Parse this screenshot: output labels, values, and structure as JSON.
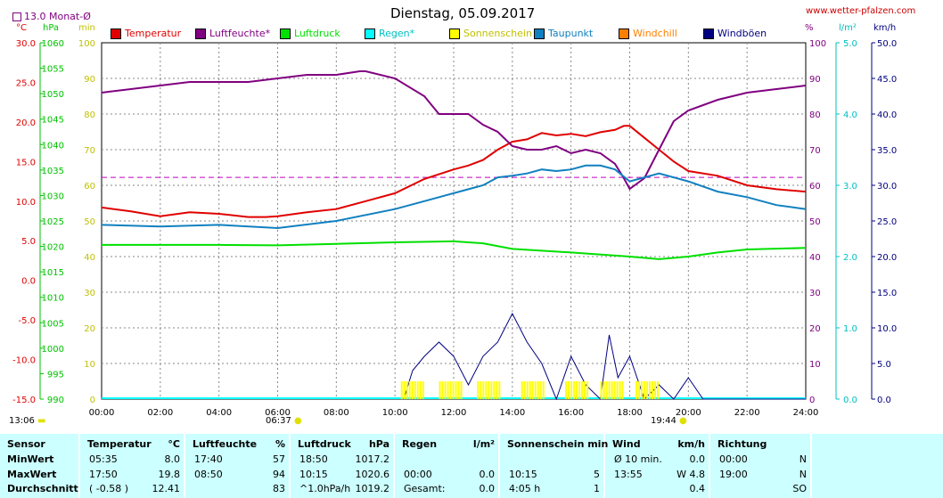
{
  "header": {
    "title": "Dienstag, 05.09.2017",
    "site": "www.wetter-pfalzen.com",
    "monat_label": "13.0 Monat-Ø",
    "unit_labels": {
      "temp": "°C",
      "hpa": "hPa",
      "min": "min",
      "pct": "%",
      "lm2": "l/m²",
      "kmh": "km/h"
    }
  },
  "legend": [
    {
      "label": "Temperatur",
      "color": "#e00000"
    },
    {
      "label": "Luftfeuchte*",
      "color": "#800080"
    },
    {
      "label": "Luftdruck",
      "color": "#00e000"
    },
    {
      "label": "Regen*",
      "color": "#00ffff"
    },
    {
      "label": "Sonnenschein",
      "color": "#ffff00"
    },
    {
      "label": "Taupunkt",
      "color": "#1080c0"
    },
    {
      "label": "Windchill",
      "color": "#ff8000"
    },
    {
      "label": "Windböen",
      "color": "#000080"
    }
  ],
  "markers": {
    "sunrise_day": "13:06",
    "sunrise": "06:37",
    "sunset": "19:44"
  },
  "chart_data": {
    "type": "line",
    "x_ticks": [
      "00:00",
      "02:00",
      "04:00",
      "06:00",
      "08:00",
      "10:00",
      "12:00",
      "14:00",
      "16:00",
      "18:00",
      "20:00",
      "22:00",
      "24:00"
    ],
    "axes": {
      "temp_c": {
        "ticks": [
          "30.0",
          "25.0",
          "20.0",
          "15.0",
          "10.0",
          "5.0",
          "0.0",
          "-5.0",
          "-10.0",
          "-15.0"
        ],
        "range": [
          -15,
          30
        ],
        "color": "#e00000"
      },
      "pressure_hpa": {
        "ticks": [
          "1060",
          "1055",
          "1050",
          "1045",
          "1040",
          "1035",
          "1030",
          "1025",
          "1020",
          "1015",
          "1010",
          "1005",
          "1000",
          "995",
          "990"
        ],
        "range": [
          990,
          1060
        ],
        "color": "#00c000"
      },
      "sun_min": {
        "ticks": [
          "100",
          "90",
          "80",
          "70",
          "60",
          "50",
          "40",
          "30",
          "20",
          "10",
          "0"
        ],
        "range": [
          0,
          100
        ],
        "color": "#c0c000"
      },
      "humidity_pct": {
        "ticks": [
          "100",
          "90",
          "80",
          "70",
          "60",
          "50",
          "40",
          "30",
          "20",
          "10",
          "0"
        ],
        "range": [
          0,
          100
        ],
        "color": "#800080"
      },
      "rain_lm2": {
        "ticks": [
          "5.0",
          "4.0",
          "3.0",
          "2.0",
          "1.0",
          "0.0"
        ],
        "range": [
          0,
          5
        ],
        "color": "#00c0c0"
      },
      "wind_kmh": {
        "ticks": [
          "50.0",
          "45.0",
          "40.0",
          "35.0",
          "30.0",
          "25.0",
          "20.0",
          "15.0",
          "10.0",
          "5.0",
          "0.0"
        ],
        "range": [
          0,
          50
        ],
        "color": "#000080"
      }
    },
    "monthly_avg_temp": 13.0,
    "series": [
      {
        "name": "Temperatur",
        "axis": "temp_c",
        "color": "#e00000",
        "x": [
          0,
          1,
          2,
          3,
          4,
          5,
          5.6,
          6,
          7,
          8,
          9,
          10,
          11,
          12,
          12.5,
          13,
          13.5,
          14,
          14.5,
          15,
          15.5,
          16,
          16.5,
          17,
          17.5,
          17.8,
          18,
          18.5,
          19,
          19.5,
          20,
          21,
          22,
          23,
          24
        ],
        "y": [
          9.2,
          8.7,
          8.1,
          8.6,
          8.4,
          8.0,
          8.0,
          8.1,
          8.6,
          9.0,
          10.0,
          11.0,
          12.8,
          14.0,
          14.5,
          15.2,
          16.5,
          17.5,
          17.8,
          18.6,
          18.3,
          18.5,
          18.2,
          18.7,
          19.0,
          19.5,
          19.5,
          18.0,
          16.5,
          15.0,
          13.8,
          13.2,
          12.0,
          11.5,
          11.2
        ]
      },
      {
        "name": "Luftfeuchte*",
        "axis": "humidity_pct",
        "color": "#800080",
        "x": [
          0,
          1,
          2,
          3,
          4,
          5,
          6,
          7,
          8,
          8.8,
          9,
          10,
          11,
          11.5,
          12,
          12.5,
          13,
          13.5,
          14,
          14.5,
          15,
          15.5,
          16,
          16.5,
          17,
          17.5,
          17.8,
          18,
          18.5,
          19,
          19.5,
          20,
          21,
          22,
          23,
          24
        ],
        "y": [
          86,
          87,
          88,
          89,
          89,
          89,
          90,
          91,
          91,
          92,
          92,
          90,
          85,
          80,
          80,
          80,
          77,
          75,
          71,
          70,
          70,
          71,
          69,
          70,
          69,
          66,
          62,
          59,
          62,
          70,
          78,
          81,
          84,
          86,
          87,
          88
        ]
      },
      {
        "name": "Luftdruck",
        "axis": "pressure_hpa",
        "color": "#00e000",
        "x": [
          0,
          2,
          4,
          6,
          8,
          10,
          12,
          13,
          14,
          16,
          18,
          19,
          20,
          21,
          22,
          24
        ],
        "y": [
          1020.3,
          1020.3,
          1020.3,
          1020.2,
          1020.5,
          1020.8,
          1021.0,
          1020.6,
          1019.5,
          1018.8,
          1018.0,
          1017.5,
          1018.0,
          1018.8,
          1019.4,
          1019.7
        ]
      },
      {
        "name": "Taupunkt",
        "axis": "temp_c",
        "color": "#1080c0",
        "x": [
          0,
          2,
          4,
          6,
          8,
          10,
          11,
          12,
          12.5,
          13,
          13.5,
          14,
          14.5,
          15,
          15.5,
          16,
          16.5,
          17,
          17.5,
          18,
          18.5,
          19,
          20,
          21,
          22,
          23,
          24
        ],
        "y": [
          7.0,
          6.8,
          7.0,
          6.6,
          7.5,
          9.0,
          10.0,
          11.0,
          11.5,
          12.0,
          13.0,
          13.2,
          13.5,
          14.0,
          13.8,
          14.0,
          14.5,
          14.5,
          14.0,
          12.5,
          13.0,
          13.5,
          12.5,
          11.2,
          10.5,
          9.5,
          9.0
        ]
      },
      {
        "name": "Windböen",
        "axis": "wind_kmh",
        "color": "#000080",
        "x": [
          10.3,
          10.6,
          11,
          11.5,
          12,
          12.5,
          13,
          13.5,
          14,
          14.5,
          15,
          15.5,
          16,
          16.5,
          17,
          17.3,
          17.6,
          18,
          18.5,
          19,
          19.5,
          20,
          20.5,
          24
        ],
        "y": [
          0,
          4,
          6,
          8,
          6,
          2,
          6,
          8,
          12,
          8,
          5,
          0,
          6,
          2,
          0,
          9,
          3,
          6,
          0,
          2,
          0,
          3,
          0,
          0
        ]
      },
      {
        "name": "Sonnenschein",
        "axis": "sun_min",
        "color": "#ffff00",
        "x": [
          10.2,
          11.5,
          12.8,
          14.3,
          15.8,
          17.0,
          18.2
        ],
        "y": [
          5,
          5,
          5,
          5,
          5,
          5,
          5
        ]
      }
    ]
  },
  "table": {
    "headers": [
      {
        "label": "Sensor"
      },
      {
        "label": "Temperatur",
        "unit": "°C"
      },
      {
        "label": "Luftfeuchte",
        "unit": "%"
      },
      {
        "label": "Luftdruck",
        "unit": "hPa"
      },
      {
        "label": "Regen",
        "unit": "l/m²"
      },
      {
        "label": "Sonnenschein min",
        "unit": ""
      },
      {
        "label": "Wind",
        "unit": "km/h"
      },
      {
        "label": "Richtung",
        "unit": ""
      }
    ],
    "rows": [
      {
        "label": "MinWert",
        "cells": [
          [
            "05:35",
            "8.0"
          ],
          [
            "17:40",
            "57"
          ],
          [
            "18:50",
            "1017.2"
          ],
          [
            "",
            ""
          ],
          [
            "",
            ""
          ],
          [
            "Ø 10 min.",
            "0.0"
          ],
          [
            "00:00",
            "N"
          ]
        ]
      },
      {
        "label": "MaxWert",
        "cells": [
          [
            "17:50",
            "19.8"
          ],
          [
            "08:50",
            "94"
          ],
          [
            "10:15",
            "1020.6"
          ],
          [
            "00:00",
            "0.0"
          ],
          [
            "10:15",
            "5"
          ],
          [
            "13:55",
            "W 4.8"
          ],
          [
            "19:00",
            "N"
          ]
        ]
      },
      {
        "label": "Durchschnitt",
        "cells": [
          [
            "( -0.58 )",
            "12.41"
          ],
          [
            "",
            "83"
          ],
          [
            "^1.0hPa/h",
            "1019.2"
          ],
          [
            "Gesamt:",
            "0.0"
          ],
          [
            "4:05 h",
            "1"
          ],
          [
            "",
            "0.4"
          ],
          [
            "",
            "SO"
          ]
        ]
      }
    ]
  }
}
